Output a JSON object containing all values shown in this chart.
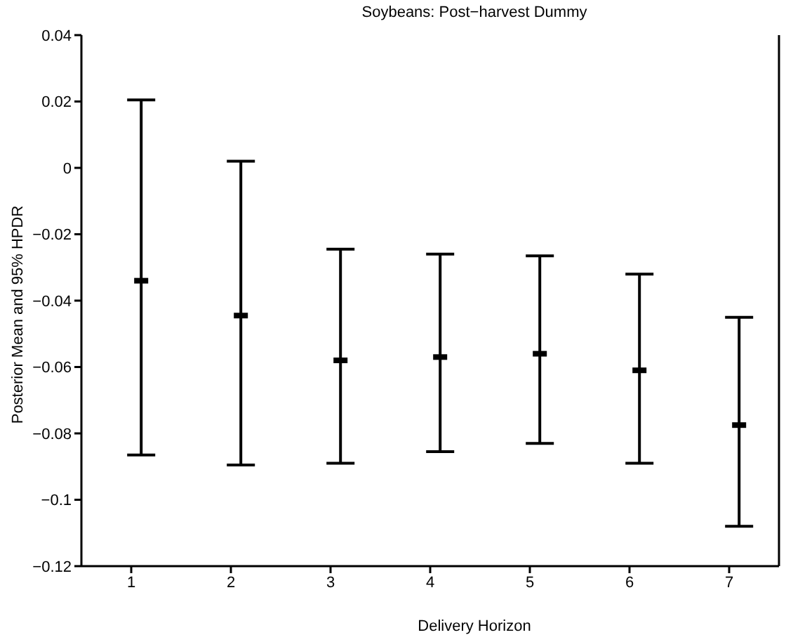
{
  "chart_data": {
    "type": "scatter",
    "title": "Soybeans: Post−harvest Dummy",
    "xlabel": "Delivery Horizon",
    "ylabel": "Posterior Mean and 95% HPDR",
    "x": [
      1.1,
      2.1,
      3.1,
      4.1,
      5.1,
      6.1,
      7.1
    ],
    "series": [
      {
        "color": "#000000",
        "values": [
          -0.034,
          -0.0445,
          -0.058,
          -0.057,
          -0.056,
          -0.061,
          -0.0775
        ],
        "errors": [
          [
            -0.0865,
            0.0205
          ],
          [
            -0.0895,
            0.002
          ],
          [
            -0.089,
            -0.0245
          ],
          [
            -0.0855,
            -0.026
          ],
          [
            -0.083,
            -0.0265
          ],
          [
            -0.089,
            -0.032
          ],
          [
            -0.108,
            -0.045
          ]
        ]
      }
    ],
    "xlim": [
      0.5,
      7.5
    ],
    "xticks": [
      1,
      2,
      3,
      4,
      5,
      6,
      7
    ],
    "ylim": [
      -0.12,
      0.04
    ],
    "yticks": [
      -0.12,
      -0.1,
      -0.08,
      -0.06,
      -0.04,
      -0.02,
      0,
      0.02,
      0.04
    ],
    "grid": false,
    "legend": false
  }
}
